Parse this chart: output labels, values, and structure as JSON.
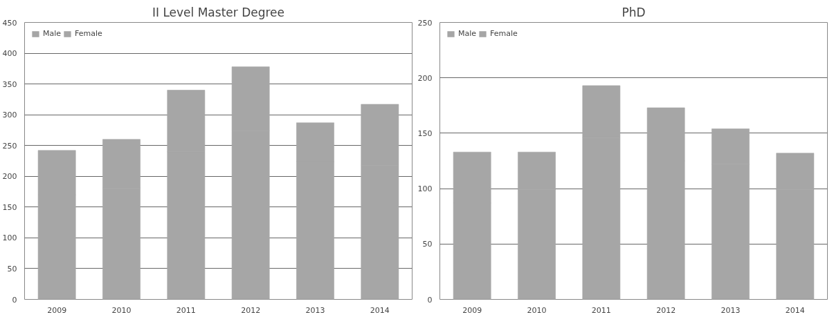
{
  "chart_data": [
    {
      "type": "bar",
      "title": "II Level Master Degree",
      "stacked": true,
      "categories": [
        "2009",
        "2010",
        "2011",
        "2012",
        "2013",
        "2014"
      ],
      "series": [
        {
          "name": "Male",
          "color": "#a6a6a6",
          "values": [
            170,
            181,
            240,
            274,
            224,
            218
          ]
        },
        {
          "name": "Female",
          "color": "#a6a6a6",
          "values": [
            72,
            79,
            100,
            104,
            63,
            99
          ]
        }
      ],
      "ylim": [
        0,
        450
      ],
      "yticks": [
        0,
        50,
        100,
        150,
        200,
        250,
        300,
        350,
        400,
        450
      ],
      "grid": "y",
      "legend": "top left"
    },
    {
      "type": "bar",
      "title": "PhD",
      "stacked": true,
      "categories": [
        "2009",
        "2010",
        "2011",
        "2012",
        "2013",
        "2014"
      ],
      "series": [
        {
          "name": "Male",
          "color": "#a6a6a6",
          "values": [
            87,
            99,
            146,
            125,
            122,
            99
          ]
        },
        {
          "name": "Female",
          "color": "#a6a6a6",
          "values": [
            46,
            34,
            47,
            48,
            32,
            33
          ]
        }
      ],
      "ylim": [
        0,
        250
      ],
      "yticks": [
        0,
        50,
        100,
        150,
        200,
        250
      ],
      "grid": "y",
      "legend": "top left"
    }
  ]
}
